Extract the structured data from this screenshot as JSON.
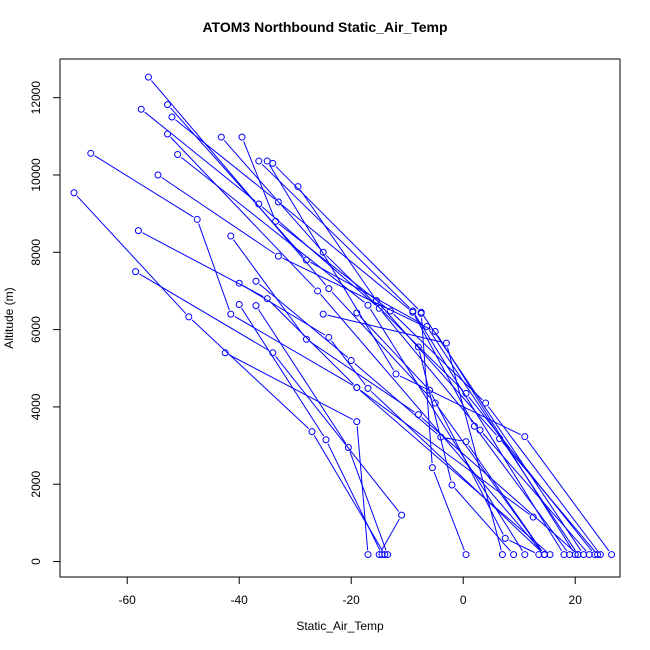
{
  "chart_data": {
    "type": "line",
    "title": "ATOM3 Northbound Static_Air_Temp",
    "xlabel": "Static_Air_Temp",
    "ylabel": "Altitude (m)",
    "xlim": [
      -72,
      28
    ],
    "ylim": [
      -400,
      13000
    ],
    "x_ticks": [
      -60,
      -40,
      -20,
      0,
      20
    ],
    "x_tick_labels": [
      "-60",
      "-40",
      "-20",
      "0",
      "20"
    ],
    "y_ticks": [
      0,
      2000,
      4000,
      6000,
      8000,
      10000,
      12000
    ],
    "y_tick_labels": [
      "0",
      "2000",
      "4000",
      "6000",
      "8000",
      "10000",
      "12000"
    ],
    "grid": false,
    "color": "#0000ff",
    "marker": "open-circle",
    "series": [
      {
        "x": [
          -56.2,
          -24.0,
          -5.0,
          14.5
        ],
        "y": [
          12530,
          7060,
          4100,
          180
        ]
      },
      {
        "x": [
          -52.8,
          -28.0,
          -6.5,
          20.5
        ],
        "y": [
          11820,
          7800,
          6080,
          180
        ]
      },
      {
        "x": [
          -57.5,
          -36.5,
          -15.0,
          3.0,
          22.5
        ],
        "y": [
          11700,
          9250,
          6550,
          3400,
          180
        ]
      },
      {
        "x": [
          -52.0,
          -33.0,
          -9.0,
          2.0,
          19.0
        ],
        "y": [
          11500,
          9300,
          6450,
          3500,
          180
        ]
      },
      {
        "x": [
          -52.8,
          -26.0,
          14.5
        ],
        "y": [
          11060,
          7000,
          180
        ]
      },
      {
        "x": [
          -43.2,
          -25.0,
          0.5,
          23.5
        ],
        "y": [
          10980,
          8000,
          4350,
          180
        ]
      },
      {
        "x": [
          -39.5,
          -33.5,
          -13.0,
          4.0,
          24.5
        ],
        "y": [
          10980,
          8800,
          6480,
          4100,
          180
        ]
      },
      {
        "x": [
          -36.5,
          -9.0,
          18.0
        ],
        "y": [
          10360,
          6480,
          180
        ]
      },
      {
        "x": [
          -35.0,
          -12.0,
          11.0,
          26.5
        ],
        "y": [
          10360,
          4850,
          3230,
          180
        ]
      },
      {
        "x": [
          -34.0,
          -7.5,
          21.5
        ],
        "y": [
          10300,
          6450,
          180
        ]
      },
      {
        "x": [
          -51.0,
          -17.0,
          11.0
        ],
        "y": [
          10530,
          6630,
          180
        ]
      },
      {
        "x": [
          -66.5,
          -47.5,
          -41.5,
          -19.0,
          12.5
        ],
        "y": [
          10560,
          8850,
          6400,
          4500,
          1150
        ]
      },
      {
        "x": [
          -54.5,
          -33.0,
          -5.0,
          20.0
        ],
        "y": [
          10000,
          7900,
          5950,
          180
        ]
      },
      {
        "x": [
          -29.5,
          -15.5,
          6.5,
          24.0
        ],
        "y": [
          9700,
          6750,
          3180,
          180
        ]
      },
      {
        "x": [
          -69.5,
          -49.0,
          -27.0,
          -14.0
        ],
        "y": [
          9540,
          6330,
          3360,
          180
        ]
      },
      {
        "x": [
          -41.5,
          -28.0,
          -8.0,
          20.5
        ],
        "y": [
          8420,
          5750,
          3800,
          180
        ]
      },
      {
        "x": [
          -58.0,
          -35.0,
          -19.0,
          15.5
        ],
        "y": [
          8560,
          6800,
          4500,
          180
        ]
      },
      {
        "x": [
          -58.5,
          -34.0,
          -11.0,
          -15.0
        ],
        "y": [
          7500,
          5400,
          1200,
          180
        ]
      },
      {
        "x": [
          -40.0,
          -24.0,
          -17.0,
          14.5
        ],
        "y": [
          7200,
          5800,
          4480,
          180
        ]
      },
      {
        "x": [
          -37.0,
          -20.0,
          -4.0,
          0.5,
          14.5
        ],
        "y": [
          7250,
          5200,
          3220,
          3100,
          180
        ]
      },
      {
        "x": [
          -40.0,
          -24.5,
          -14.5
        ],
        "y": [
          6650,
          3150,
          180
        ]
      },
      {
        "x": [
          -37.0,
          -20.5,
          -13.5
        ],
        "y": [
          6620,
          2950,
          180
        ]
      },
      {
        "x": [
          -25.0,
          -3.0,
          7.0
        ],
        "y": [
          6400,
          5650,
          180
        ]
      },
      {
        "x": [
          -19.0,
          -6.0,
          7.5,
          13.5
        ],
        "y": [
          6430,
          4430,
          600,
          180
        ]
      },
      {
        "x": [
          -42.5,
          -19.0,
          -17.0
        ],
        "y": [
          5400,
          3620,
          180
        ]
      },
      {
        "x": [
          -7.5,
          -5.5,
          0.5
        ],
        "y": [
          6420,
          2430,
          180
        ]
      },
      {
        "x": [
          -8.0,
          -2.0,
          9.0
        ],
        "y": [
          5550,
          1980,
          180
        ]
      }
    ]
  }
}
